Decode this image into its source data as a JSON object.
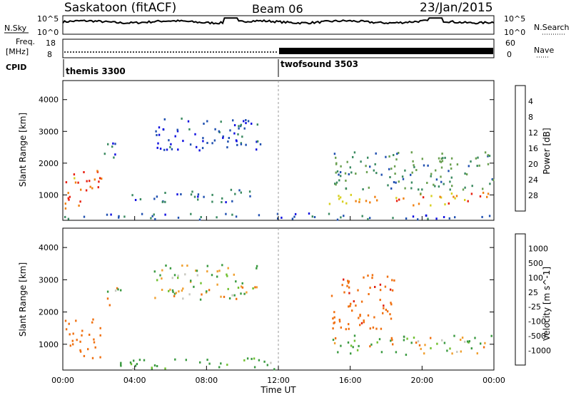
{
  "header": {
    "station": "Saskatoon (fitACF)",
    "beam": "Beam 06",
    "date": "23/Jan/2015"
  },
  "strip_labels": {
    "nsky": "N.Sky",
    "nsearch": "N.Search",
    "freq_line1": "Freq.",
    "freq_line2": "[MHz]",
    "nave": "Nave",
    "cpid": "CPID"
  },
  "noise_axis": {
    "top_label": "10^5",
    "bottom_label": "10^0"
  },
  "freq_axis": {
    "top": "18",
    "bottom": "8"
  },
  "nave_axis": {
    "top": "60",
    "bottom": "0"
  },
  "cpid_segments": [
    {
      "name": "themis 3300",
      "start_hour": 0
    },
    {
      "name": "twofsound 3503",
      "start_hour": 12
    }
  ],
  "time_axis": {
    "label": "Time UT",
    "ticks": [
      "00:00",
      "04:00",
      "08:00",
      "12:00",
      "16:00",
      "20:00",
      "00:00"
    ],
    "tick_hours": [
      0,
      4,
      8,
      12,
      16,
      20,
      24
    ]
  },
  "range_axis": {
    "label": "Slant Range [km]",
    "ticks": [
      "1000",
      "2000",
      "3000",
      "4000"
    ],
    "tick_values": [
      1000,
      2000,
      3000,
      4000
    ],
    "ylim": [
      200,
      4600
    ]
  },
  "power_colorbar": {
    "label": "Power [dB]",
    "ticks": [
      "4",
      "8",
      "12",
      "16",
      "20",
      "24",
      "28"
    ],
    "colors": [
      "#1010e0",
      "#2050b0",
      "#3a8a60",
      "#6aa050",
      "#d8d020",
      "#f08010",
      "#e82010"
    ]
  },
  "velocity_colorbar": {
    "label": "Velocity [m s^-1]",
    "ticks": [
      "1000",
      "500",
      "100",
      "25",
      "-25",
      "-100",
      "-500",
      "-1000"
    ],
    "colors": [
      "#1535c0",
      "#2a7a60",
      "#3a9a40",
      "#70c030",
      "#c8c8c0",
      "#f0a030",
      "#f07010",
      "#e02010"
    ]
  },
  "chart_data": [
    {
      "type": "heatmap",
      "title": "Power",
      "xlabel": "Time UT",
      "ylabel": "Slant Range [km]",
      "xlim": [
        0,
        24
      ],
      "ylim": [
        200,
        4600
      ],
      "colorbar": {
        "label": "Power [dB]",
        "range": [
          0,
          30
        ]
      },
      "scatter_regions": [
        {
          "hours": [
            0.1,
            2.2
          ],
          "range_km": [
            600,
            1800
          ],
          "power_db": 25
        },
        {
          "hours": [
            2.1,
            3.2
          ],
          "range_km": [
            2200,
            2800
          ],
          "power_db": 6
        },
        {
          "hours": [
            5.0,
            11.0
          ],
          "range_km": [
            2400,
            3500
          ],
          "power_db": 5
        },
        {
          "hours": [
            3.5,
            10.5
          ],
          "range_km": [
            800,
            1200
          ],
          "power_db": 8
        },
        {
          "hours": [
            14.8,
            24.0
          ],
          "range_km": [
            700,
            1100
          ],
          "power_db": 22
        },
        {
          "hours": [
            14.8,
            24.0
          ],
          "range_km": [
            1200,
            2400
          ],
          "power_db": 12
        },
        {
          "hours": [
            0.0,
            24.0
          ],
          "range_km": [
            250,
            450
          ],
          "power_db": 6
        }
      ]
    },
    {
      "type": "heatmap",
      "title": "Velocity",
      "xlabel": "Time UT",
      "ylabel": "Slant Range [km]",
      "xlim": [
        0,
        24
      ],
      "ylim": [
        200,
        4600
      ],
      "colorbar": {
        "label": "Velocity [m s^-1]",
        "range": [
          -1000,
          1000
        ]
      },
      "scatter_regions": [
        {
          "hours": [
            0.1,
            2.2
          ],
          "range_km": [
            600,
            1800
          ],
          "velocity": -300
        },
        {
          "hours": [
            2.1,
            3.2
          ],
          "range_km": [
            2200,
            2800
          ],
          "velocity": 0
        },
        {
          "hours": [
            5.0,
            11.0
          ],
          "range_km": [
            2400,
            3500
          ],
          "velocity": 0
        },
        {
          "hours": [
            14.8,
            24.0
          ],
          "range_km": [
            700,
            1300
          ],
          "velocity": 0
        },
        {
          "hours": [
            14.8,
            18.5
          ],
          "range_km": [
            1500,
            3200
          ],
          "velocity": -400
        },
        {
          "hours": [
            3.0,
            12.0
          ],
          "range_km": [
            250,
            600
          ],
          "velocity": 150
        }
      ]
    }
  ]
}
